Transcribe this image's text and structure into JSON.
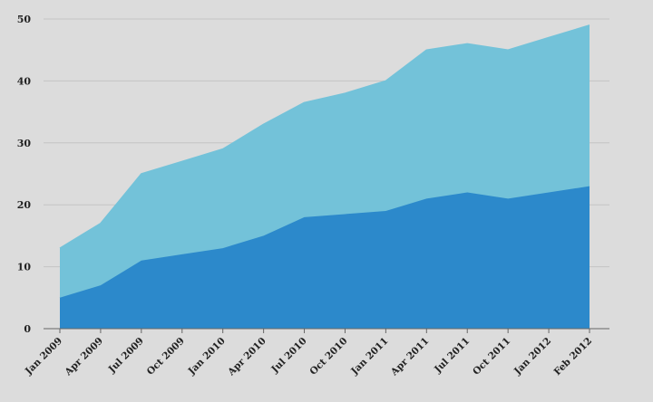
{
  "chart_data": {
    "type": "area",
    "stacked": true,
    "title": "",
    "xlabel": "",
    "ylabel": "",
    "ylim": [
      0,
      50
    ],
    "yticks": [
      0,
      10,
      20,
      30,
      40,
      50
    ],
    "grid": true,
    "legend": "none",
    "categories": [
      "Jan 2009",
      "Apr 2009",
      "Jul 2009",
      "Oct 2009",
      "Jan 2010",
      "Apr 2010",
      "Jul 2010",
      "Oct 2010",
      "Jan 2011",
      "Apr 2011",
      "Jul 2011",
      "Oct 2011",
      "Jan 2012",
      "Feb 2012"
    ],
    "series": [
      {
        "values": [
          5,
          7,
          11,
          12,
          13,
          15,
          18,
          18.5,
          19,
          21,
          22,
          21,
          22,
          23
        ],
        "color": "#2c89cb"
      },
      {
        "values": [
          8,
          10,
          14,
          15,
          16,
          18,
          18.5,
          19.5,
          21,
          24,
          24,
          24,
          25,
          26
        ],
        "color": "#73c2d9"
      }
    ],
    "stack_totals": [
      13,
      17,
      25,
      27,
      29,
      33,
      36.5,
      38,
      40,
      45,
      46,
      45,
      47,
      49
    ]
  }
}
